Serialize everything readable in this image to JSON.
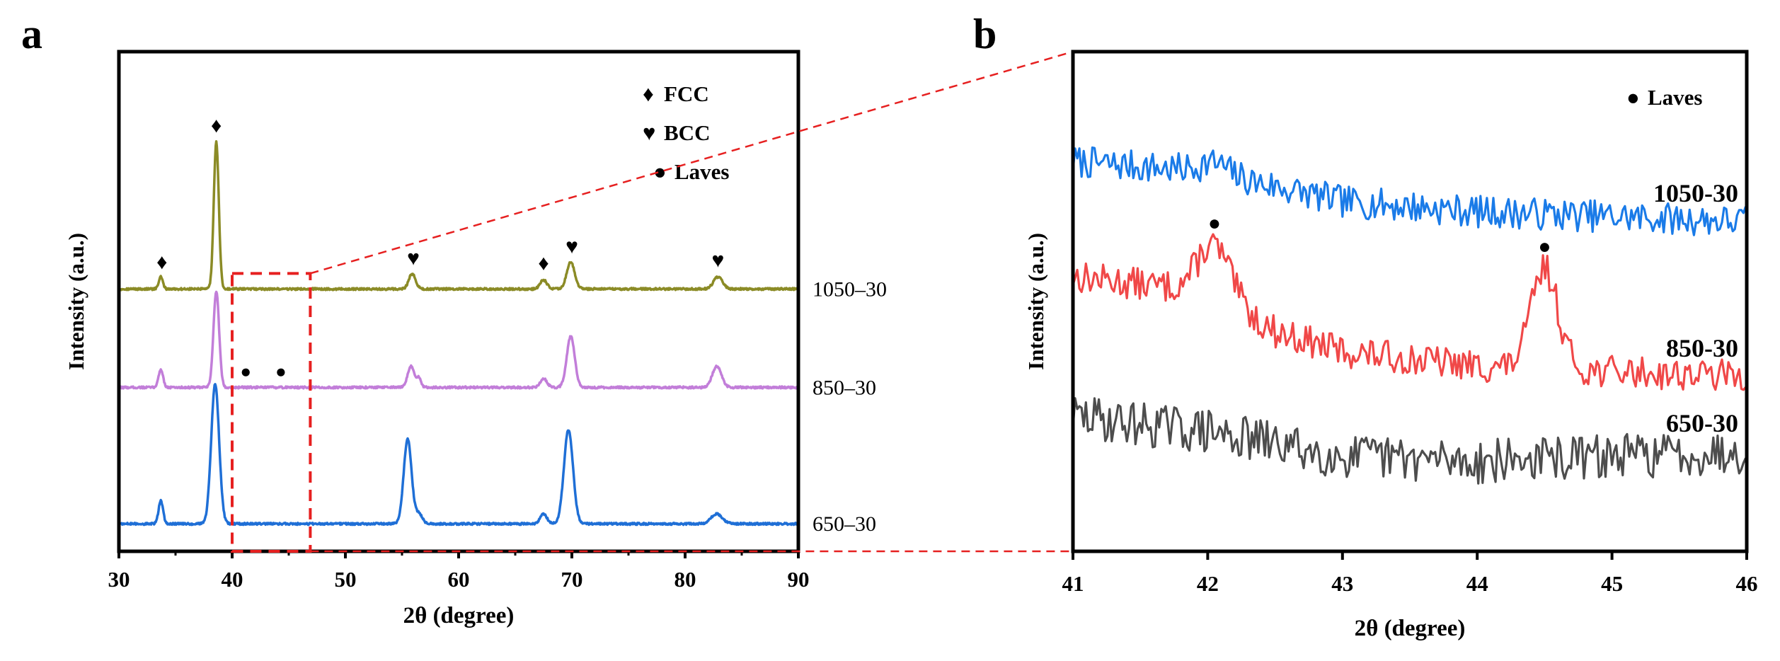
{
  "figure": {
    "panel_a_letter": "a",
    "panel_b_letter": "b"
  },
  "chart_data": [
    {
      "type": "line",
      "panel": "a",
      "title": "",
      "xlabel": "2θ (degree)",
      "ylabel": "Intensity (a.u.)",
      "xlim": [
        30,
        90
      ],
      "xticks": [
        30,
        40,
        50,
        60,
        70,
        80,
        90
      ],
      "ylim": [
        0,
        100
      ],
      "legend": [
        {
          "symbol": "♦",
          "label": "FCC"
        },
        {
          "symbol": "♥",
          "label": "BCC"
        },
        {
          "symbol": "●",
          "label": "Laves"
        }
      ],
      "series": [
        {
          "name": "1050–30",
          "color": "#8b8b26",
          "baseline": 52.5,
          "height_scale": 0.6,
          "peaks": [
            {
              "x": 33.7,
              "h": 4,
              "w": 0.18
            },
            {
              "x": 38.6,
              "h": 49,
              "w": 0.22
            },
            {
              "x": 55.9,
              "h": 5,
              "w": 0.3
            },
            {
              "x": 67.5,
              "h": 3,
              "w": 0.3
            },
            {
              "x": 69.9,
              "h": 9,
              "w": 0.35
            },
            {
              "x": 82.9,
              "h": 4,
              "w": 0.4
            }
          ],
          "markers": [
            {
              "x": 33.8,
              "symbol": "♦"
            },
            {
              "x": 38.6,
              "symbol": "♦"
            },
            {
              "x": 56.0,
              "symbol": "♥"
            },
            {
              "x": 67.5,
              "symbol": "♦"
            },
            {
              "x": 70.0,
              "symbol": "♥"
            },
            {
              "x": 82.9,
              "symbol": "♥"
            }
          ]
        },
        {
          "name": "850–30",
          "color": "#c27ed9",
          "baseline": 32.8,
          "height_scale": 0.6,
          "peaks": [
            {
              "x": 33.7,
              "h": 6,
              "w": 0.2
            },
            {
              "x": 38.6,
              "h": 32,
              "w": 0.25
            },
            {
              "x": 55.8,
              "h": 7,
              "w": 0.3
            },
            {
              "x": 56.5,
              "h": 3,
              "w": 0.2
            },
            {
              "x": 67.5,
              "h": 3,
              "w": 0.3
            },
            {
              "x": 69.9,
              "h": 17,
              "w": 0.35
            },
            {
              "x": 82.8,
              "h": 7,
              "w": 0.4
            }
          ],
          "markers": [
            {
              "x": 41.2,
              "symbol": "●"
            },
            {
              "x": 44.3,
              "symbol": "●"
            }
          ]
        },
        {
          "name": "650–30",
          "color": "#1f6fd6",
          "baseline": 5.5,
          "height_scale": 0.65,
          "peaks": [
            {
              "x": 33.7,
              "h": 7,
              "w": 0.2
            },
            {
              "x": 38.5,
              "h": 43,
              "w": 0.35
            },
            {
              "x": 55.5,
              "h": 26,
              "w": 0.35
            },
            {
              "x": 56.5,
              "h": 3,
              "w": 0.3
            },
            {
              "x": 67.5,
              "h": 3,
              "w": 0.3
            },
            {
              "x": 69.7,
              "h": 29,
              "w": 0.4
            },
            {
              "x": 82.8,
              "h": 3,
              "w": 0.5
            }
          ],
          "markers": []
        }
      ],
      "zoom_box": {
        "x_range": [
          40,
          46.9
        ],
        "label": "region enlarged in (b)"
      }
    },
    {
      "type": "line",
      "panel": "b",
      "title": "",
      "xlabel": "2θ (degree)",
      "ylabel": "Intensity (a.u.)",
      "xlim": [
        41,
        46
      ],
      "xticks": [
        41,
        42,
        43,
        44,
        45,
        46
      ],
      "ylim": [
        0,
        100
      ],
      "legend": [
        {
          "symbol": "●",
          "label": "Laves"
        }
      ],
      "series": [
        {
          "name": "1050-30",
          "color": "#1a7be8",
          "noise": 3.2,
          "seed": 7,
          "trend": [
            {
              "x": 41,
              "y": 78
            },
            {
              "x": 42,
              "y": 76
            },
            {
              "x": 43,
              "y": 70
            },
            {
              "x": 44,
              "y": 68
            },
            {
              "x": 45,
              "y": 67
            },
            {
              "x": 46,
              "y": 66
            }
          ],
          "peaks": [
            {
              "x": 42.05,
              "h": 2,
              "w": 0.1
            }
          ],
          "markers": []
        },
        {
          "name": "850-30",
          "color": "#f04848",
          "noise": 3.2,
          "seed": 13,
          "trend": [
            {
              "x": 41,
              "y": 55
            },
            {
              "x": 42,
              "y": 52
            },
            {
              "x": 42.5,
              "y": 44
            },
            {
              "x": 43,
              "y": 40
            },
            {
              "x": 44,
              "y": 37
            },
            {
              "x": 45,
              "y": 36
            },
            {
              "x": 46,
              "y": 35
            }
          ],
          "peaks": [
            {
              "x": 42.05,
              "h": 10,
              "w": 0.12
            },
            {
              "x": 44.5,
              "h": 20,
              "w": 0.1
            }
          ],
          "markers": [
            {
              "x": 42.05,
              "symbol": "●"
            },
            {
              "x": 44.5,
              "symbol": "●"
            }
          ]
        },
        {
          "name": "650-30",
          "color": "#4d4d4d",
          "noise": 4.5,
          "seed": 29,
          "trend": [
            {
              "x": 41,
              "y": 27
            },
            {
              "x": 42,
              "y": 24
            },
            {
              "x": 43,
              "y": 19
            },
            {
              "x": 44,
              "y": 18
            },
            {
              "x": 45,
              "y": 19
            },
            {
              "x": 46,
              "y": 20
            }
          ],
          "peaks": [],
          "markers": []
        }
      ]
    }
  ]
}
